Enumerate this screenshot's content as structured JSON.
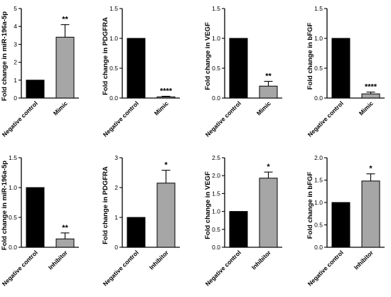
{
  "chart_data": [
    {
      "type": "bar",
      "ylabel": "Fold change in miR-196a-5p",
      "categories": [
        "Negative control",
        "Mimic"
      ],
      "values": [
        1.0,
        3.4
      ],
      "errors": [
        0,
        0.7
      ],
      "significance": [
        "",
        "**"
      ],
      "colors": [
        "#000000",
        "#a6a6a6"
      ],
      "ylim": [
        0,
        5
      ],
      "yticks": [
        0,
        1,
        2,
        3,
        4,
        5
      ],
      "ytick_labels": [
        "0",
        "1",
        "2",
        "3",
        "4",
        "5"
      ]
    },
    {
      "type": "bar",
      "ylabel": "Fold change in PDGFRA",
      "categories": [
        "Negative control",
        "Mimic"
      ],
      "values": [
        1.0,
        0.02
      ],
      "errors": [
        0,
        0.01
      ],
      "significance": [
        "",
        "****"
      ],
      "colors": [
        "#000000",
        "#a6a6a6"
      ],
      "ylim": [
        0,
        1.5
      ],
      "yticks": [
        0,
        0.5,
        1.0,
        1.5
      ],
      "ytick_labels": [
        "0.0",
        "0.5",
        "1.0",
        "1.5"
      ]
    },
    {
      "type": "bar",
      "ylabel": "Fold change in VEGF",
      "categories": [
        "Negative control",
        "Mimic"
      ],
      "values": [
        1.0,
        0.2
      ],
      "errors": [
        0,
        0.08
      ],
      "significance": [
        "",
        "**"
      ],
      "colors": [
        "#000000",
        "#a6a6a6"
      ],
      "ylim": [
        0,
        1.5
      ],
      "yticks": [
        0,
        0.5,
        1.0,
        1.5
      ],
      "ytick_labels": [
        "0.0",
        "0.5",
        "1.0",
        "1.5"
      ]
    },
    {
      "type": "bar",
      "ylabel": "Fold change in bFGF",
      "categories": [
        "Negative control",
        "Mimic"
      ],
      "values": [
        1.0,
        0.07
      ],
      "errors": [
        0,
        0.03
      ],
      "significance": [
        "",
        "****"
      ],
      "colors": [
        "#000000",
        "#a6a6a6"
      ],
      "ylim": [
        0,
        1.5
      ],
      "yticks": [
        0,
        0.5,
        1.0,
        1.5
      ],
      "ytick_labels": [
        "0.0",
        "0.5",
        "1.0",
        "1.5"
      ]
    },
    {
      "type": "bar",
      "ylabel": "Fold change in miR-196a-5p",
      "categories": [
        "Negative control",
        "Inhibitor"
      ],
      "values": [
        1.0,
        0.14
      ],
      "errors": [
        0,
        0.1
      ],
      "significance": [
        "",
        "**"
      ],
      "colors": [
        "#000000",
        "#a6a6a6"
      ],
      "ylim": [
        0,
        1.5
      ],
      "yticks": [
        0,
        0.5,
        1.0,
        1.5
      ],
      "ytick_labels": [
        "0.0",
        "0.5",
        "1.0",
        "1.5"
      ]
    },
    {
      "type": "bar",
      "ylabel": "Fold change in PDGFRA",
      "categories": [
        "Negative control",
        "Inhibitor"
      ],
      "values": [
        1.0,
        2.15
      ],
      "errors": [
        0,
        0.43
      ],
      "significance": [
        "",
        "*"
      ],
      "colors": [
        "#000000",
        "#a6a6a6"
      ],
      "ylim": [
        0,
        3
      ],
      "yticks": [
        0,
        1,
        2,
        3
      ],
      "ytick_labels": [
        "0",
        "1",
        "2",
        "3"
      ]
    },
    {
      "type": "bar",
      "ylabel": "Fold change in VEGF",
      "categories": [
        "Negative control",
        "Inhibitor"
      ],
      "values": [
        1.0,
        1.93
      ],
      "errors": [
        0,
        0.17
      ],
      "significance": [
        "",
        "*"
      ],
      "colors": [
        "#000000",
        "#a6a6a6"
      ],
      "ylim": [
        0,
        2.5
      ],
      "yticks": [
        0,
        0.5,
        1.0,
        1.5,
        2.0,
        2.5
      ],
      "ytick_labels": [
        "0.0",
        "0.5",
        "1.0",
        "1.5",
        "2.0",
        "2.5"
      ]
    },
    {
      "type": "bar",
      "ylabel": "Fold change in bFGF",
      "categories": [
        "Negative control",
        "Inhibitor"
      ],
      "values": [
        1.0,
        1.48
      ],
      "errors": [
        0,
        0.16
      ],
      "significance": [
        "",
        "*"
      ],
      "colors": [
        "#000000",
        "#a6a6a6"
      ],
      "ylim": [
        0,
        2.0
      ],
      "yticks": [
        0,
        0.5,
        1.0,
        1.5,
        2.0
      ],
      "ytick_labels": [
        "0.0",
        "0.5",
        "1.0",
        "1.5",
        "2.0"
      ]
    }
  ]
}
